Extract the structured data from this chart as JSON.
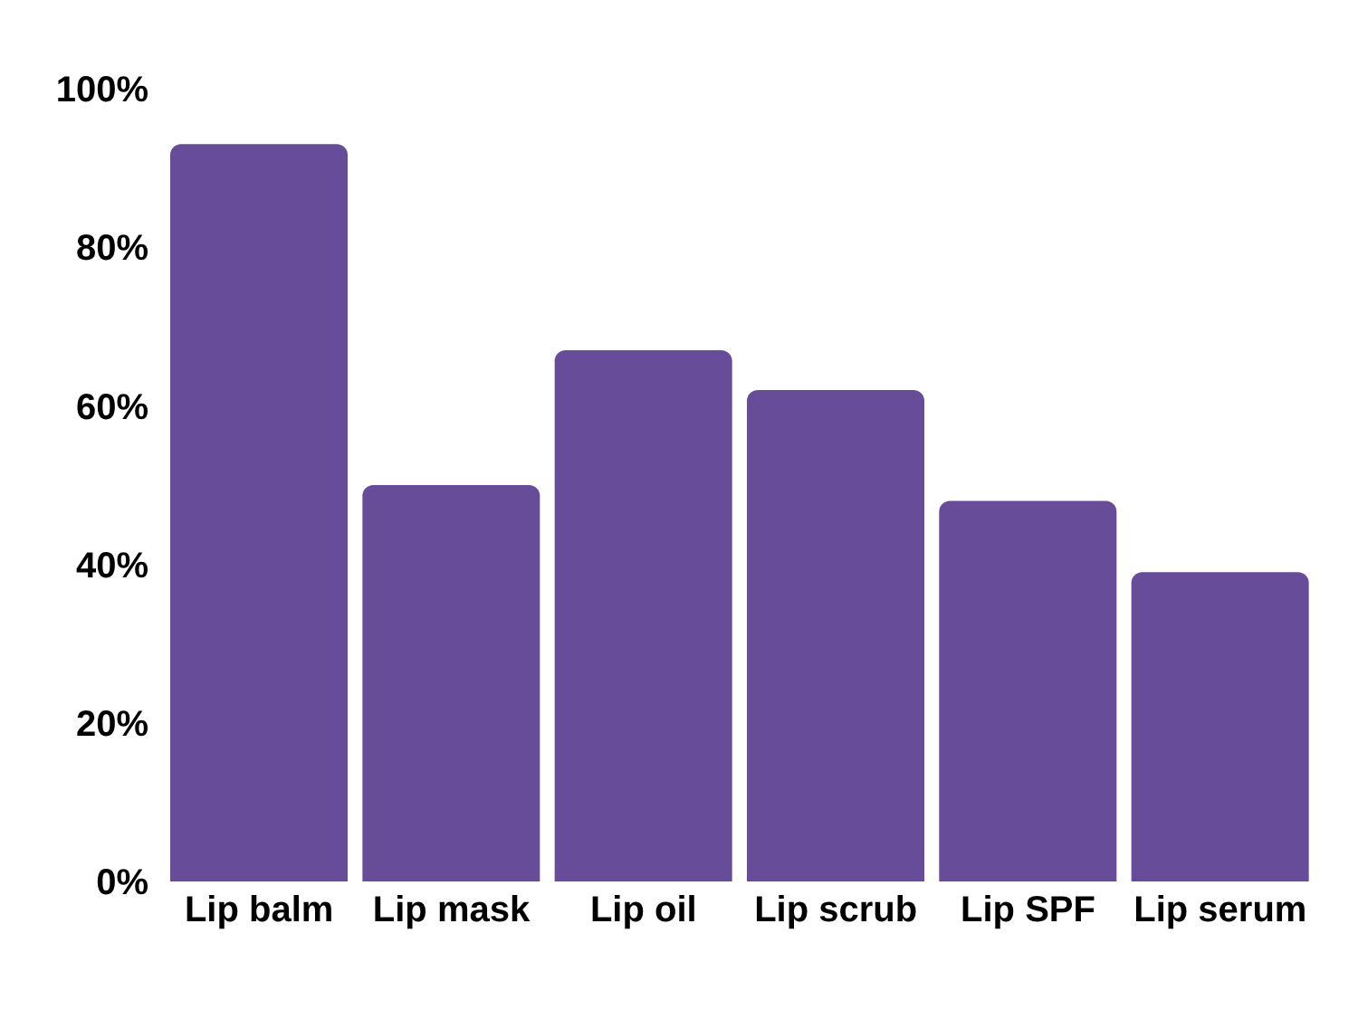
{
  "chart_data": {
    "type": "bar",
    "categories": [
      "Lip balm",
      "Lip mask",
      "Lip oil",
      "Lip scrub",
      "Lip SPF",
      "Lip serum"
    ],
    "values": [
      93,
      50,
      67,
      62,
      48,
      39
    ],
    "color": "#674c9a",
    "ylim": [
      0,
      100
    ],
    "yticks": [
      {
        "value": 0,
        "label": "0%"
      },
      {
        "value": 20,
        "label": "20%"
      },
      {
        "value": 40,
        "label": "40%"
      },
      {
        "value": 60,
        "label": "60%"
      },
      {
        "value": 80,
        "label": "80%"
      },
      {
        "value": 100,
        "label": "100%"
      }
    ],
    "grid": false,
    "legend": false
  }
}
